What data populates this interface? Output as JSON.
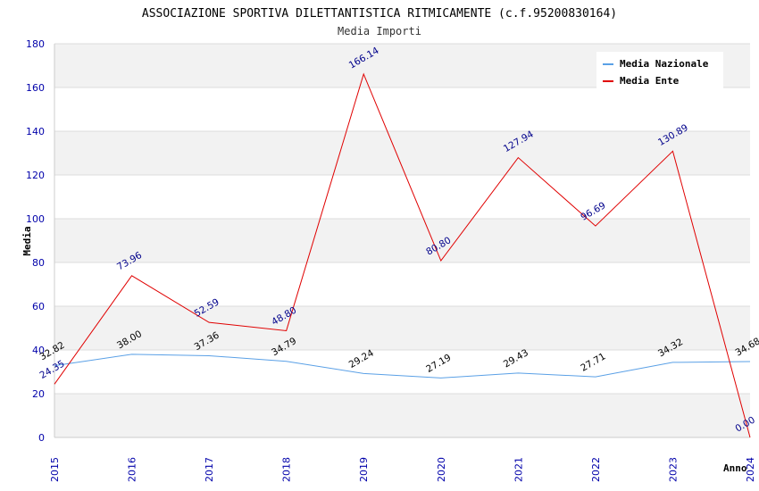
{
  "chart_data": {
    "type": "line",
    "title": "ASSOCIAZIONE SPORTIVA DILETTANTISTICA RITMICAMENTE (c.f.95200830164)",
    "subtitle": "Media Importi",
    "xlabel": "Anno",
    "ylabel": "Media",
    "ylim": [
      0,
      180
    ],
    "yticks": [
      0,
      20,
      40,
      60,
      80,
      100,
      120,
      140,
      160,
      180
    ],
    "categories": [
      "2015",
      "2016",
      "2017",
      "2018",
      "2019",
      "2020",
      "2021",
      "2022",
      "2023",
      "2024"
    ],
    "legend_position": "top-right",
    "series": [
      {
        "name": "Media Nazionale",
        "color": "#5aa0e6",
        "label_color": "#000000",
        "values": [
          32.82,
          38.0,
          37.36,
          34.79,
          29.24,
          27.19,
          29.43,
          27.71,
          34.32,
          34.68
        ],
        "labels": [
          "32.82",
          "38.00",
          "37.36",
          "34.79",
          "29.24",
          "27.19",
          "29.43",
          "27.71",
          "34.32",
          "34.68"
        ]
      },
      {
        "name": "Media Ente",
        "color": "#e00000",
        "label_color": "#00008b",
        "values": [
          24.35,
          73.96,
          52.59,
          48.8,
          166.14,
          80.8,
          127.94,
          96.69,
          130.89,
          0.0
        ],
        "labels": [
          "24.35",
          "73.96",
          "52.59",
          "48.80",
          "166.14",
          "80.80",
          "127.94",
          "96.69",
          "130.89",
          "0.00"
        ]
      }
    ],
    "colors": {
      "band": "#f2f2f2",
      "grid": "#dcdcdc",
      "axis": "#cccccc",
      "tick_label": "#0000aa",
      "title": "#000000",
      "subtitle": "#333333"
    }
  }
}
